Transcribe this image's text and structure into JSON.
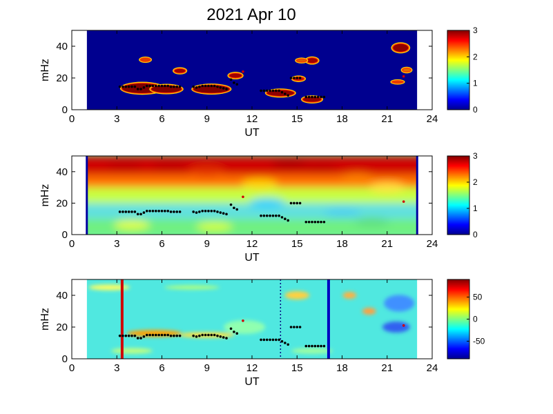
{
  "title": "2021 Apr 10",
  "chart_data": [
    {
      "type": "heatmap",
      "xlabel": "UT",
      "ylabel": "mHz",
      "xlim": [
        0,
        24
      ],
      "ylim": [
        0,
        50
      ],
      "xticks": [
        0,
        3,
        6,
        9,
        12,
        15,
        18,
        21,
        24
      ],
      "yticks": [
        0,
        20,
        40
      ],
      "data_range_ut": [
        1,
        23
      ],
      "colorbar": {
        "range": [
          0,
          3
        ],
        "ticks": [
          0,
          1,
          2,
          3
        ]
      },
      "background_color": "#00008f",
      "blobs": [
        {
          "x": 4.7,
          "y": 13.5,
          "rx": 1.35,
          "ry": 3.0,
          "color": "#800000"
        },
        {
          "x": 6.3,
          "y": 13.0,
          "rx": 1.0,
          "ry": 2.2,
          "color": "#800000"
        },
        {
          "x": 9.3,
          "y": 13.0,
          "rx": 1.2,
          "ry": 2.4,
          "color": "#800000"
        },
        {
          "x": 7.2,
          "y": 24.5,
          "rx": 0.35,
          "ry": 1.2,
          "color": "#a00000"
        },
        {
          "x": 4.9,
          "y": 31.5,
          "rx": 0.3,
          "ry": 0.9,
          "color": "#e04000"
        },
        {
          "x": 10.9,
          "y": 21.5,
          "rx": 0.4,
          "ry": 1.3,
          "color": "#a00000"
        },
        {
          "x": 13.9,
          "y": 10.5,
          "rx": 0.9,
          "ry": 1.8,
          "color": "#900000"
        },
        {
          "x": 15.1,
          "y": 19.5,
          "rx": 0.35,
          "ry": 1.0,
          "color": "#c01000"
        },
        {
          "x": 16.0,
          "y": 6.5,
          "rx": 0.6,
          "ry": 1.5,
          "color": "#900000"
        },
        {
          "x": 16.0,
          "y": 31.0,
          "rx": 0.35,
          "ry": 1.5,
          "color": "#a00000"
        },
        {
          "x": 15.3,
          "y": 31.0,
          "rx": 0.3,
          "ry": 0.8,
          "color": "#e06000"
        },
        {
          "x": 21.9,
          "y": 39.0,
          "rx": 0.5,
          "ry": 2.4,
          "color": "#900000"
        },
        {
          "x": 21.7,
          "y": 17.5,
          "rx": 0.35,
          "ry": 0.6,
          "color": "#e04000"
        },
        {
          "x": 22.3,
          "y": 25.0,
          "rx": 0.25,
          "ry": 1.0,
          "color": "#e07000"
        }
      ],
      "dots_ut": [
        3.2,
        3.4,
        3.6,
        3.8,
        4.0,
        4.2,
        4.4,
        4.6,
        4.8,
        5.0,
        5.2,
        5.4,
        5.6,
        5.8,
        6.0,
        6.2,
        6.4,
        6.6,
        6.8,
        7.0,
        7.2,
        8.1,
        8.3,
        8.5,
        8.7,
        8.9,
        9.1,
        9.3,
        9.5,
        9.7,
        9.9,
        10.1,
        10.3
      ],
      "dots_mhz": [
        14.5,
        14.5,
        14.5,
        14.5,
        14.5,
        14.5,
        13.0,
        13.0,
        14.0,
        15.0,
        15.0,
        15.0,
        15.0,
        15.0,
        15.0,
        15.0,
        15.0,
        14.5,
        14.5,
        14.5,
        14.5,
        14.5,
        14.0,
        14.5,
        15.0,
        15.0,
        15.0,
        15.0,
        15.0,
        14.5,
        14.0,
        13.5,
        13.0
      ],
      "dots2_ut": [
        10.6,
        10.8,
        11.0,
        12.6,
        12.8,
        13.0,
        13.2,
        13.4,
        13.6,
        13.8,
        14.0,
        14.2,
        14.4,
        14.6,
        14.8,
        15.0,
        15.2,
        15.6,
        15.8,
        16.0,
        16.2,
        16.4,
        16.6,
        16.8
      ],
      "dots2_mhz": [
        19.0,
        17.0,
        16.0,
        12.0,
        12.0,
        12.0,
        12.0,
        12.0,
        12.0,
        12.0,
        11.0,
        10.0,
        9.0,
        20.0,
        20.0,
        20.0,
        20.0,
        8.0,
        8.0,
        8.0,
        8.0,
        8.0,
        8.0,
        8.0
      ],
      "red_dots_ut": [
        11.4,
        22.1
      ],
      "red_dots_mhz": [
        24.0,
        21.0
      ]
    },
    {
      "type": "heatmap",
      "xlabel": "UT",
      "ylabel": "mHz",
      "xlim": [
        0,
        24
      ],
      "ylim": [
        0,
        50
      ],
      "xticks": [
        0,
        3,
        6,
        9,
        12,
        15,
        18,
        21,
        24
      ],
      "yticks": [
        0,
        20,
        40
      ],
      "data_range_ut": [
        1,
        23
      ],
      "colorbar": {
        "range": [
          0,
          3
        ],
        "ticks": [
          0,
          1,
          2,
          3
        ]
      },
      "vertical_lines_ut": [
        1.0,
        23.0
      ],
      "vertical_line_color": "#0000a0",
      "bands": [
        {
          "y0": 30,
          "y1": 50,
          "color": "#ff7000"
        },
        {
          "y0": 38,
          "y1": 50,
          "color": "#d00000"
        },
        {
          "y0": 20,
          "y1": 30,
          "color": "#c8ff40"
        },
        {
          "y0": 10,
          "y1": 20,
          "color": "#60e0e0"
        },
        {
          "y0": 0,
          "y1": 10,
          "color": "#70f080"
        }
      ],
      "red_dots_ut": [
        11.4,
        22.1
      ],
      "red_dots_mhz": [
        24.0,
        21.0
      ]
    },
    {
      "type": "heatmap",
      "xlabel": "UT",
      "ylabel": "mHz",
      "xlim": [
        0,
        24
      ],
      "ylim": [
        0,
        50
      ],
      "xticks": [
        0,
        3,
        6,
        9,
        12,
        15,
        18,
        21,
        24
      ],
      "yticks": [
        0,
        20,
        40
      ],
      "data_range_ut": [
        1,
        23
      ],
      "colorbar": {
        "range": [
          -90,
          90
        ],
        "ticks": [
          50,
          0,
          -50
        ]
      },
      "vertical_lines": [
        {
          "ut": 3.35,
          "color": "#d00000",
          "style": "solid"
        },
        {
          "ut": 17.1,
          "color": "#0000c0",
          "style": "solid"
        },
        {
          "ut": 13.9,
          "color": "#000080",
          "style": "dotted"
        }
      ],
      "red_dots_ut": [
        11.4,
        22.1
      ],
      "red_dots_mhz": [
        24.0,
        21.0
      ]
    }
  ]
}
